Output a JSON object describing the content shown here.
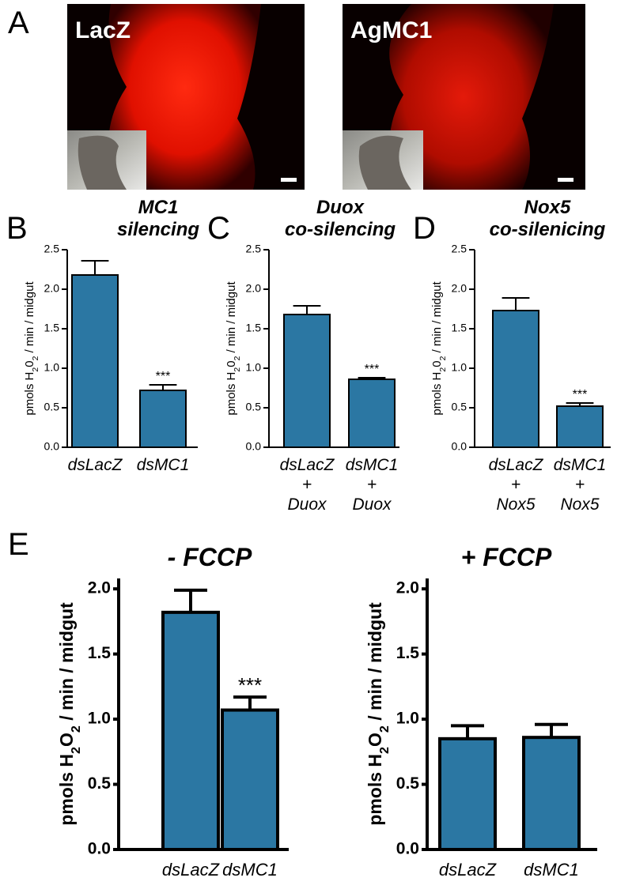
{
  "figure": {
    "letters": [
      "A",
      "B",
      "C",
      "D",
      "E"
    ],
    "images": [
      {
        "label": "LacZ"
      },
      {
        "label": "AgMC1"
      }
    ]
  },
  "chart_data": [
    {
      "type": "bar",
      "title": [
        "MC1",
        "silencing"
      ],
      "y_label": [
        "pmols H",
        "2",
        "0",
        "2",
        " / min / midgut"
      ],
      "categories": [
        [
          "dsLacZ"
        ],
        [
          "dsMC1"
        ]
      ],
      "values": [
        2.18,
        0.72
      ],
      "errors": [
        0.18,
        0.07
      ],
      "color": "#2b77a3",
      "ylim": [
        0,
        2.5
      ],
      "yticks": [
        {
          "value": 0,
          "label": "0.0"
        },
        0.5,
        {
          "value": 1,
          "label": "1.0"
        },
        1.5,
        {
          "value": 2,
          "label": "2.0"
        },
        2.5
      ],
      "annotations": [
        {
          "index": 1,
          "text": "***"
        }
      ]
    },
    {
      "type": "bar",
      "title": [
        "Duox",
        "co-silencing"
      ],
      "y_label": [
        "pmols H",
        "2",
        "0",
        "2",
        " / min / midgut"
      ],
      "categories": [
        [
          "dsLacZ",
          "+",
          "Duox"
        ],
        [
          "dsMC1",
          "+",
          "Duox"
        ]
      ],
      "values": [
        1.68,
        0.86
      ],
      "errors": [
        0.11,
        0.02
      ],
      "color": "#2b77a3",
      "ylim": [
        0,
        2.5
      ],
      "yticks": [
        {
          "value": 0,
          "label": "0.0"
        },
        0.5,
        {
          "value": 1,
          "label": "1.0"
        },
        1.5,
        {
          "value": 2,
          "label": "2.0"
        },
        2.5
      ],
      "annotations": [
        {
          "index": 1,
          "text": "***"
        }
      ]
    },
    {
      "type": "bar",
      "title": [
        "Nox5",
        "co-silenicing"
      ],
      "y_label": [
        "pmols H",
        "2",
        "0",
        "2",
        " / min / midgut"
      ],
      "categories": [
        [
          "dsLacZ",
          "+",
          "Nox5"
        ],
        [
          "dsMC1",
          "+",
          "Nox5"
        ]
      ],
      "values": [
        1.73,
        0.52
      ],
      "errors": [
        0.16,
        0.04
      ],
      "color": "#2b77a3",
      "ylim": [
        0,
        2.5
      ],
      "yticks": [
        {
          "value": 0,
          "label": "0.0"
        },
        0.5,
        {
          "value": 1,
          "label": "1.0"
        },
        1.5,
        {
          "value": 2,
          "label": "2.0"
        },
        2.5
      ],
      "annotations": [
        {
          "index": 1,
          "text": "***"
        }
      ]
    },
    {
      "type": "bar",
      "title": [
        "- FCCP"
      ],
      "y_label": [
        "pmols H",
        "2",
        "O",
        "2",
        " / min / midgut"
      ],
      "categories": [
        [
          "dsLacZ"
        ],
        [
          "dsMC1"
        ]
      ],
      "values": [
        1.82,
        1.07
      ],
      "errors": [
        0.17,
        0.1
      ],
      "color": "#2b77a3",
      "ylim": [
        0,
        2.08
      ],
      "yticks": [
        {
          "value": 0,
          "label": "0.0"
        },
        0.5,
        {
          "value": 1,
          "label": "1.0"
        },
        1.5,
        {
          "value": 2,
          "label": "2.0"
        }
      ],
      "annotations": [
        {
          "index": 1,
          "text": "***"
        }
      ]
    },
    {
      "type": "bar",
      "title": [
        "+ FCCP"
      ],
      "y_label": [
        "pmols H",
        "2",
        "O",
        "2",
        " / min / midgut"
      ],
      "categories": [
        [
          "dsLacZ"
        ],
        [
          "dsMC1"
        ]
      ],
      "values": [
        0.85,
        0.86
      ],
      "errors": [
        0.1,
        0.1
      ],
      "color": "#2b77a3",
      "ylim": [
        0,
        2.08
      ],
      "yticks": [
        {
          "value": 0,
          "label": "0.0"
        },
        0.5,
        {
          "value": 1,
          "label": "1.0"
        },
        1.5,
        {
          "value": 2,
          "label": "2.0"
        }
      ]
    }
  ]
}
